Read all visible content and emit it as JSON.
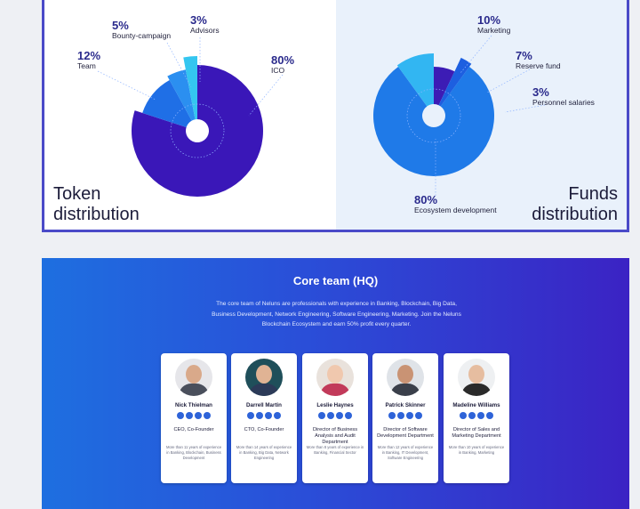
{
  "chart_data": [
    {
      "type": "pie",
      "title": "Token distribution",
      "slices": [
        {
          "label": "ICO",
          "value": 80,
          "color": "#3a17b8"
        },
        {
          "label": "Team",
          "value": 12,
          "color": "#1f6fe6"
        },
        {
          "label": "Bounty-campaign",
          "value": 5,
          "color": "#2b8ff0"
        },
        {
          "label": "Advisors",
          "value": 3,
          "color": "#34c6f0"
        }
      ]
    },
    {
      "type": "pie",
      "title": "Funds distribution",
      "slices": [
        {
          "label": "Ecosystem development",
          "value": 80,
          "color": "#1f7ae8"
        },
        {
          "label": "Marketing",
          "value": 10,
          "color": "#32b6f2"
        },
        {
          "label": "Reserve fund",
          "value": 7,
          "color": "#3c1cb5"
        },
        {
          "label": "Personnel salaries",
          "value": 3,
          "color": "#1d5fe0"
        }
      ]
    }
  ],
  "token_chart": {
    "title_line1": "Token",
    "title_line2": "distribution",
    "labels": [
      {
        "pct": "12%",
        "name": "Team"
      },
      {
        "pct": "5%",
        "name": "Bounty-campaign"
      },
      {
        "pct": "3%",
        "name": "Advisors"
      },
      {
        "pct": "80%",
        "name": "ICO"
      }
    ]
  },
  "funds_chart": {
    "title_line1": "Funds",
    "title_line2": "distribution",
    "labels": [
      {
        "pct": "10%",
        "name": "Marketing"
      },
      {
        "pct": "7%",
        "name": "Reserve fund"
      },
      {
        "pct": "3%",
        "name": "Personnel salaries"
      },
      {
        "pct": "80%",
        "name": "Ecosystem development"
      }
    ]
  },
  "team": {
    "title": "Core team (HQ)",
    "description": "The core team of Neluns are professionals with experience in Banking, Blockchain, Big Data, Business Development, Network Engineering, Software Engineering, Marketing. Join the Neluns Blockchain Ecosystem and earn 50% profit every quarter.",
    "members": [
      {
        "name": "Nick Thielman",
        "role": "CEO, Co-Founder",
        "experience": "More than 11 years of experience in Banking, Blockchain, Business Development",
        "skin": "#d9a98a",
        "shirt": "#4a4f5c",
        "bg": "#e6e6ea"
      },
      {
        "name": "Darrell Martin",
        "role": "CTO, Co-Founder",
        "experience": "More than 14 years of experience in Banking, Big Data, Network Engineering",
        "skin": "#e0b394",
        "shirt": "#2c3a58",
        "bg": "#1f4f5a"
      },
      {
        "name": "Leslie Haynes",
        "role": "Director of Business Analysis and Audit Department",
        "experience": "More than 8 years of experience in Banking, Financial Sector",
        "skin": "#f0c8ae",
        "shirt": "#c23a5a",
        "bg": "#e9e2dc"
      },
      {
        "name": "Patrick Skinner",
        "role": "Director of Software Development Department",
        "experience": "More than 12 years of experience in Banking, IT Development, Software Engineering",
        "skin": "#c99374",
        "shirt": "#3a3f4a",
        "bg": "#dfe3e8"
      },
      {
        "name": "Madeline Williams",
        "role": "Director of Sales and Marketing Department",
        "experience": "More than 10 years of experience in Banking, Marketing",
        "skin": "#e6bda0",
        "shirt": "#2a2a2a",
        "bg": "#eef0f2"
      }
    ],
    "social_icons": [
      "f",
      "in",
      "t",
      "tw"
    ]
  }
}
